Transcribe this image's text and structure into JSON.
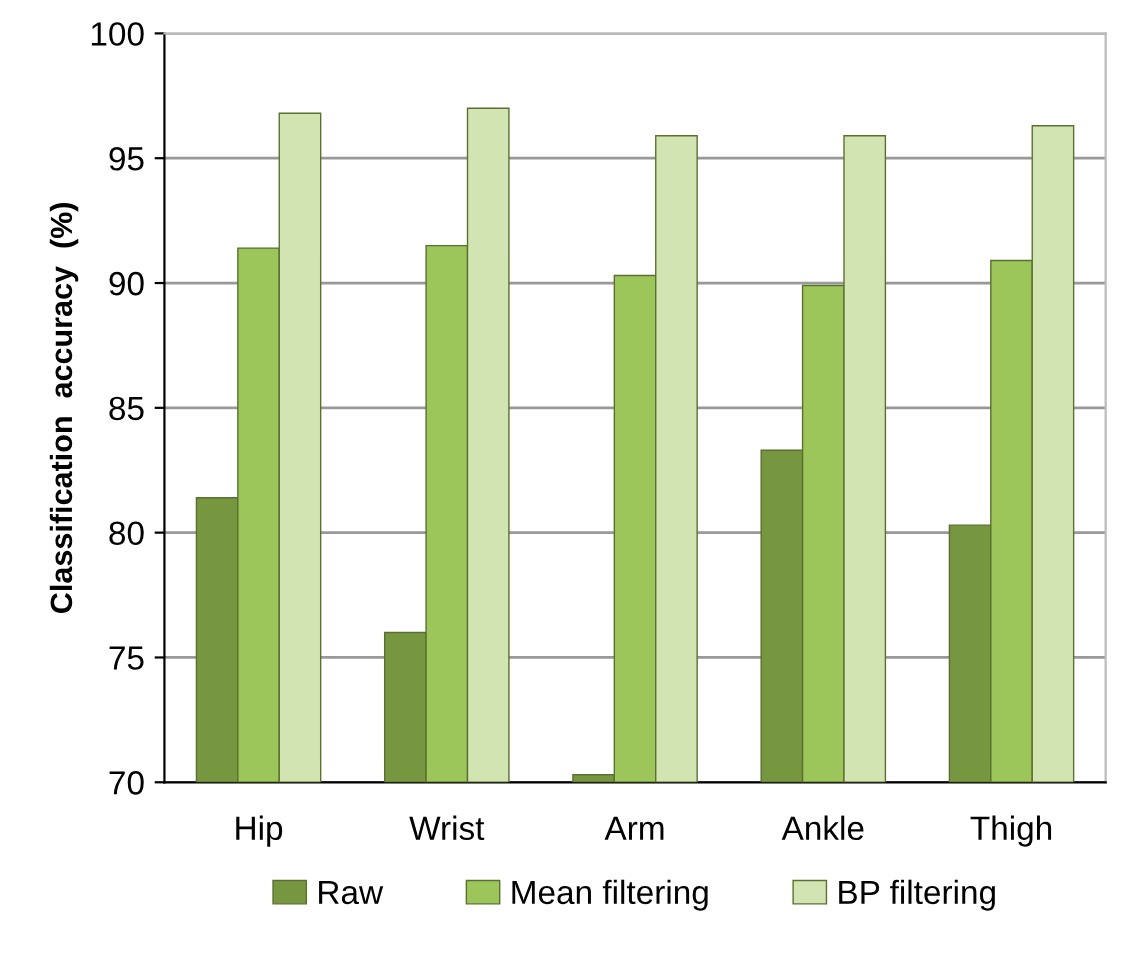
{
  "chart_data": {
    "type": "bar",
    "ylabel": "Classification  accuracy  (%)",
    "categories": [
      "Hip",
      "Wrist",
      "Arm",
      "Ankle",
      "Thigh"
    ],
    "series": [
      {
        "name": "Raw",
        "color": "#76963f",
        "values": [
          81.4,
          76.0,
          70.3,
          83.3,
          80.3
        ]
      },
      {
        "name": "Mean filtering",
        "color": "#9dc65a",
        "values": [
          91.4,
          91.5,
          90.3,
          89.9,
          90.9
        ]
      },
      {
        "name": "BP filtering",
        "color": "#d3e4b3",
        "values": [
          96.8,
          97.0,
          95.9,
          95.9,
          96.3
        ]
      }
    ],
    "ylim": [
      70,
      100
    ],
    "yticks": [
      70,
      75,
      80,
      85,
      90,
      95,
      100
    ],
    "grid": "y",
    "legend": "bottom"
  }
}
